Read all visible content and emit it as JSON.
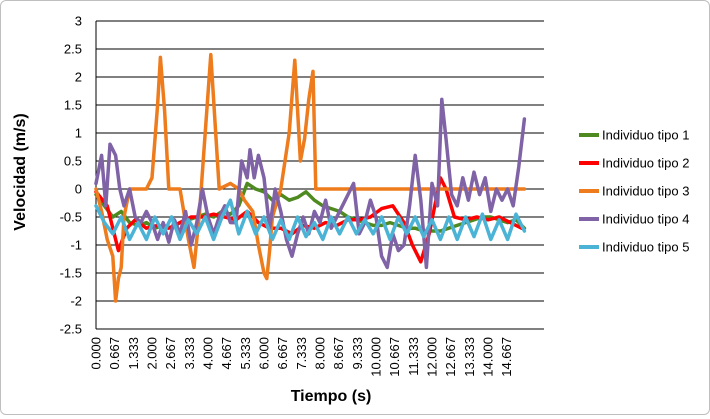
{
  "chart_data": {
    "type": "line",
    "xlabel": "Tiempo (s)",
    "ylabel": "Velocidad (m/s)",
    "ylim": [
      -2.5,
      3
    ],
    "yticks": [
      "3",
      "2.5",
      "2",
      "1.5",
      "1",
      "0.5",
      "0",
      "-0.5",
      "-1",
      "-1.5",
      "-2",
      "-2.5"
    ],
    "xtick_labels": [
      "0.000",
      "0.667",
      "1.333",
      "2.000",
      "2.667",
      "3.333",
      "4.000",
      "4.667",
      "5.333",
      "6.000",
      "6.667",
      "7.333",
      "8.000",
      "8.667",
      "9.333",
      "10.000",
      "10.667",
      "11.333",
      "12.000",
      "12.667",
      "13.333",
      "14.000",
      "14.667"
    ],
    "xlim": [
      0,
      16.0
    ],
    "grid": "horizontal",
    "legend_position": "right",
    "series": [
      {
        "name": "Individuo tipo 1",
        "color": "#4e8a1f",
        "points": [
          [
            0.0,
            -0.1
          ],
          [
            0.3,
            -0.3
          ],
          [
            0.6,
            -0.5
          ],
          [
            0.9,
            -0.4
          ],
          [
            1.2,
            -0.6
          ],
          [
            1.5,
            -0.65
          ],
          [
            1.8,
            -0.6
          ],
          [
            2.1,
            -0.7
          ],
          [
            2.4,
            -0.65
          ],
          [
            2.7,
            -0.7
          ],
          [
            3.0,
            -0.6
          ],
          [
            3.3,
            -0.55
          ],
          [
            3.6,
            -0.5
          ],
          [
            3.9,
            -0.45
          ],
          [
            4.2,
            -0.5
          ],
          [
            4.5,
            -0.4
          ],
          [
            4.8,
            -0.45
          ],
          [
            5.1,
            -0.3
          ],
          [
            5.4,
            0.1
          ],
          [
            5.7,
            0.0
          ],
          [
            6.0,
            -0.05
          ],
          [
            6.3,
            -0.2
          ],
          [
            6.6,
            -0.1
          ],
          [
            6.9,
            -0.2
          ],
          [
            7.2,
            -0.15
          ],
          [
            7.5,
            -0.05
          ],
          [
            7.8,
            -0.2
          ],
          [
            8.1,
            -0.3
          ],
          [
            8.4,
            -0.35
          ],
          [
            8.7,
            -0.4
          ],
          [
            9.0,
            -0.5
          ],
          [
            9.3,
            -0.55
          ],
          [
            9.6,
            -0.6
          ],
          [
            9.9,
            -0.65
          ],
          [
            10.2,
            -0.65
          ],
          [
            10.5,
            -0.6
          ],
          [
            10.8,
            -0.65
          ],
          [
            11.1,
            -0.7
          ],
          [
            11.4,
            -0.7
          ],
          [
            11.7,
            -0.75
          ],
          [
            12.0,
            -0.75
          ],
          [
            12.3,
            -0.75
          ],
          [
            12.6,
            -0.7
          ],
          [
            12.9,
            -0.65
          ],
          [
            13.2,
            -0.6
          ],
          [
            13.5,
            -0.55
          ],
          [
            13.8,
            -0.5
          ],
          [
            14.1,
            -0.5
          ],
          [
            14.4,
            -0.55
          ],
          [
            14.7,
            -0.6
          ],
          [
            15.0,
            -0.55
          ],
          [
            15.3,
            -0.7
          ]
        ]
      },
      {
        "name": "Individuo tipo 2",
        "color": "#ff0000",
        "points": [
          [
            0.0,
            -0.05
          ],
          [
            0.4,
            -0.3
          ],
          [
            0.8,
            -1.1
          ],
          [
            1.1,
            -0.7
          ],
          [
            1.4,
            -0.55
          ],
          [
            1.8,
            -0.7
          ],
          [
            2.2,
            -0.65
          ],
          [
            2.6,
            -0.7
          ],
          [
            3.0,
            -0.6
          ],
          [
            3.4,
            -0.5
          ],
          [
            3.8,
            -0.5
          ],
          [
            4.2,
            -0.45
          ],
          [
            4.6,
            -0.5
          ],
          [
            5.0,
            -0.55
          ],
          [
            5.4,
            -0.4
          ],
          [
            5.8,
            -0.6
          ],
          [
            6.2,
            -0.7
          ],
          [
            6.6,
            -0.7
          ],
          [
            7.0,
            -0.8
          ],
          [
            7.4,
            -0.65
          ],
          [
            7.8,
            -0.7
          ],
          [
            8.2,
            -0.6
          ],
          [
            8.6,
            -0.65
          ],
          [
            9.0,
            -0.55
          ],
          [
            9.4,
            -0.55
          ],
          [
            9.8,
            -0.5
          ],
          [
            10.2,
            -0.35
          ],
          [
            10.6,
            -0.3
          ],
          [
            11.0,
            -0.6
          ],
          [
            11.3,
            -1.0
          ],
          [
            11.6,
            -1.3
          ],
          [
            11.9,
            -0.8
          ],
          [
            12.1,
            -0.3
          ],
          [
            12.3,
            0.2
          ],
          [
            12.5,
            0.0
          ],
          [
            12.8,
            -0.5
          ],
          [
            13.2,
            -0.55
          ],
          [
            13.6,
            -0.5
          ],
          [
            14.0,
            -0.55
          ],
          [
            14.4,
            -0.5
          ],
          [
            14.8,
            -0.6
          ],
          [
            15.2,
            -0.7
          ]
        ]
      },
      {
        "name": "Individuo tipo 3",
        "color": "#ee7b1c",
        "points": [
          [
            0.0,
            0.0
          ],
          [
            0.2,
            -0.4
          ],
          [
            0.4,
            -0.9
          ],
          [
            0.6,
            -1.2
          ],
          [
            0.7,
            -2.0
          ],
          [
            0.8,
            -1.6
          ],
          [
            0.9,
            -1.4
          ],
          [
            1.0,
            -0.5
          ],
          [
            1.2,
            0.0
          ],
          [
            1.5,
            0.0
          ],
          [
            1.8,
            0.0
          ],
          [
            2.0,
            0.2
          ],
          [
            2.2,
            1.5
          ],
          [
            2.3,
            2.35
          ],
          [
            2.45,
            1.4
          ],
          [
            2.6,
            0.0
          ],
          [
            3.0,
            0.0
          ],
          [
            3.3,
            -0.9
          ],
          [
            3.5,
            -1.4
          ],
          [
            3.7,
            -0.4
          ],
          [
            3.9,
            1.0
          ],
          [
            4.1,
            2.4
          ],
          [
            4.25,
            1.2
          ],
          [
            4.4,
            0.0
          ],
          [
            4.8,
            0.1
          ],
          [
            5.1,
            0.0
          ],
          [
            5.3,
            -0.2
          ],
          [
            5.6,
            -0.4
          ],
          [
            5.8,
            -1.0
          ],
          [
            6.0,
            -1.5
          ],
          [
            6.1,
            -1.6
          ],
          [
            6.2,
            -1.1
          ],
          [
            6.3,
            -0.5
          ],
          [
            6.6,
            0.0
          ],
          [
            6.9,
            1.0
          ],
          [
            7.1,
            2.3
          ],
          [
            7.3,
            0.5
          ],
          [
            7.45,
            0.9
          ],
          [
            7.6,
            1.6
          ],
          [
            7.75,
            2.1
          ],
          [
            7.85,
            0.0
          ],
          [
            8.5,
            0.0
          ],
          [
            10.0,
            0.0
          ],
          [
            12.0,
            0.0
          ],
          [
            13.0,
            0.0
          ],
          [
            14.0,
            0.0
          ],
          [
            15.3,
            0.0
          ]
        ]
      },
      {
        "name": "Individuo tipo 4",
        "color": "#7f63a6",
        "points": [
          [
            0.0,
            0.1
          ],
          [
            0.2,
            0.6
          ],
          [
            0.35,
            -0.3
          ],
          [
            0.5,
            0.8
          ],
          [
            0.7,
            0.6
          ],
          [
            0.85,
            0.0
          ],
          [
            1.0,
            -0.3
          ],
          [
            1.2,
            0.0
          ],
          [
            1.4,
            -0.5
          ],
          [
            1.6,
            -0.6
          ],
          [
            1.8,
            -0.4
          ],
          [
            2.0,
            -0.6
          ],
          [
            2.2,
            -0.9
          ],
          [
            2.4,
            -0.6
          ],
          [
            2.6,
            -0.95
          ],
          [
            2.8,
            -0.55
          ],
          [
            3.0,
            -0.8
          ],
          [
            3.2,
            -0.4
          ],
          [
            3.4,
            -1.0
          ],
          [
            3.6,
            -0.6
          ],
          [
            3.8,
            0.0
          ],
          [
            4.0,
            -0.5
          ],
          [
            4.2,
            -0.8
          ],
          [
            4.4,
            -0.5
          ],
          [
            4.6,
            -0.3
          ],
          [
            4.8,
            -0.6
          ],
          [
            5.0,
            -0.6
          ],
          [
            5.2,
            0.5
          ],
          [
            5.4,
            0.2
          ],
          [
            5.5,
            0.7
          ],
          [
            5.65,
            0.2
          ],
          [
            5.8,
            0.6
          ],
          [
            6.0,
            0.2
          ],
          [
            6.2,
            -0.7
          ],
          [
            6.4,
            0.0
          ],
          [
            6.6,
            -0.4
          ],
          [
            6.8,
            -0.9
          ],
          [
            7.0,
            -1.2
          ],
          [
            7.2,
            -0.8
          ],
          [
            7.4,
            -0.5
          ],
          [
            7.6,
            -0.8
          ],
          [
            7.8,
            -0.4
          ],
          [
            8.0,
            -0.6
          ],
          [
            8.2,
            -0.2
          ],
          [
            8.4,
            -0.7
          ],
          [
            8.6,
            -0.5
          ],
          [
            8.8,
            -0.3
          ],
          [
            9.0,
            -0.1
          ],
          [
            9.2,
            0.1
          ],
          [
            9.4,
            -0.8
          ],
          [
            9.6,
            -0.6
          ],
          [
            9.8,
            -0.2
          ],
          [
            10.0,
            -0.5
          ],
          [
            10.2,
            -1.2
          ],
          [
            10.4,
            -1.4
          ],
          [
            10.6,
            -0.8
          ],
          [
            10.8,
            -1.1
          ],
          [
            11.0,
            -1.0
          ],
          [
            11.2,
            -0.3
          ],
          [
            11.4,
            0.6
          ],
          [
            11.6,
            -0.2
          ],
          [
            11.8,
            -1.4
          ],
          [
            12.0,
            0.1
          ],
          [
            12.2,
            -0.3
          ],
          [
            12.35,
            1.6
          ],
          [
            12.5,
            0.9
          ],
          [
            12.7,
            -0.1
          ],
          [
            12.9,
            -0.3
          ],
          [
            13.1,
            0.2
          ],
          [
            13.3,
            -0.2
          ],
          [
            13.5,
            0.3
          ],
          [
            13.7,
            -0.1
          ],
          [
            13.9,
            0.2
          ],
          [
            14.1,
            -0.4
          ],
          [
            14.3,
            0.0
          ],
          [
            14.5,
            -0.2
          ],
          [
            14.7,
            0.0
          ],
          [
            14.9,
            -0.3
          ],
          [
            15.1,
            0.4
          ],
          [
            15.3,
            1.25
          ]
        ]
      },
      {
        "name": "Individuo tipo 5",
        "color": "#4bb3d6",
        "points": [
          [
            0.0,
            -0.3
          ],
          [
            0.3,
            -0.6
          ],
          [
            0.6,
            -0.8
          ],
          [
            0.9,
            -0.5
          ],
          [
            1.2,
            -0.9
          ],
          [
            1.5,
            -0.6
          ],
          [
            1.8,
            -0.9
          ],
          [
            2.1,
            -0.5
          ],
          [
            2.4,
            -0.8
          ],
          [
            2.7,
            -0.5
          ],
          [
            3.0,
            -0.9
          ],
          [
            3.3,
            -0.55
          ],
          [
            3.6,
            -0.8
          ],
          [
            3.9,
            -0.5
          ],
          [
            4.2,
            -0.9
          ],
          [
            4.5,
            -0.5
          ],
          [
            4.8,
            -0.2
          ],
          [
            5.1,
            -0.8
          ],
          [
            5.4,
            -0.4
          ],
          [
            5.7,
            -0.8
          ],
          [
            6.0,
            -0.5
          ],
          [
            6.3,
            -0.9
          ],
          [
            6.6,
            -0.55
          ],
          [
            6.9,
            -0.9
          ],
          [
            7.2,
            -0.5
          ],
          [
            7.5,
            -0.85
          ],
          [
            7.8,
            -0.6
          ],
          [
            8.1,
            -0.9
          ],
          [
            8.4,
            -0.5
          ],
          [
            8.7,
            -0.8
          ],
          [
            9.0,
            -0.5
          ],
          [
            9.3,
            -0.8
          ],
          [
            9.6,
            -0.55
          ],
          [
            9.9,
            -0.8
          ],
          [
            10.2,
            -0.5
          ],
          [
            10.5,
            -0.9
          ],
          [
            10.8,
            -0.5
          ],
          [
            11.1,
            -0.8
          ],
          [
            11.4,
            -0.5
          ],
          [
            11.7,
            -0.85
          ],
          [
            12.0,
            -0.55
          ],
          [
            12.3,
            -0.9
          ],
          [
            12.6,
            -0.5
          ],
          [
            12.9,
            -0.9
          ],
          [
            13.2,
            -0.5
          ],
          [
            13.5,
            -0.85
          ],
          [
            13.8,
            -0.45
          ],
          [
            14.1,
            -0.9
          ],
          [
            14.4,
            -0.55
          ],
          [
            14.7,
            -0.9
          ],
          [
            15.0,
            -0.45
          ],
          [
            15.3,
            -0.75
          ]
        ]
      }
    ]
  }
}
